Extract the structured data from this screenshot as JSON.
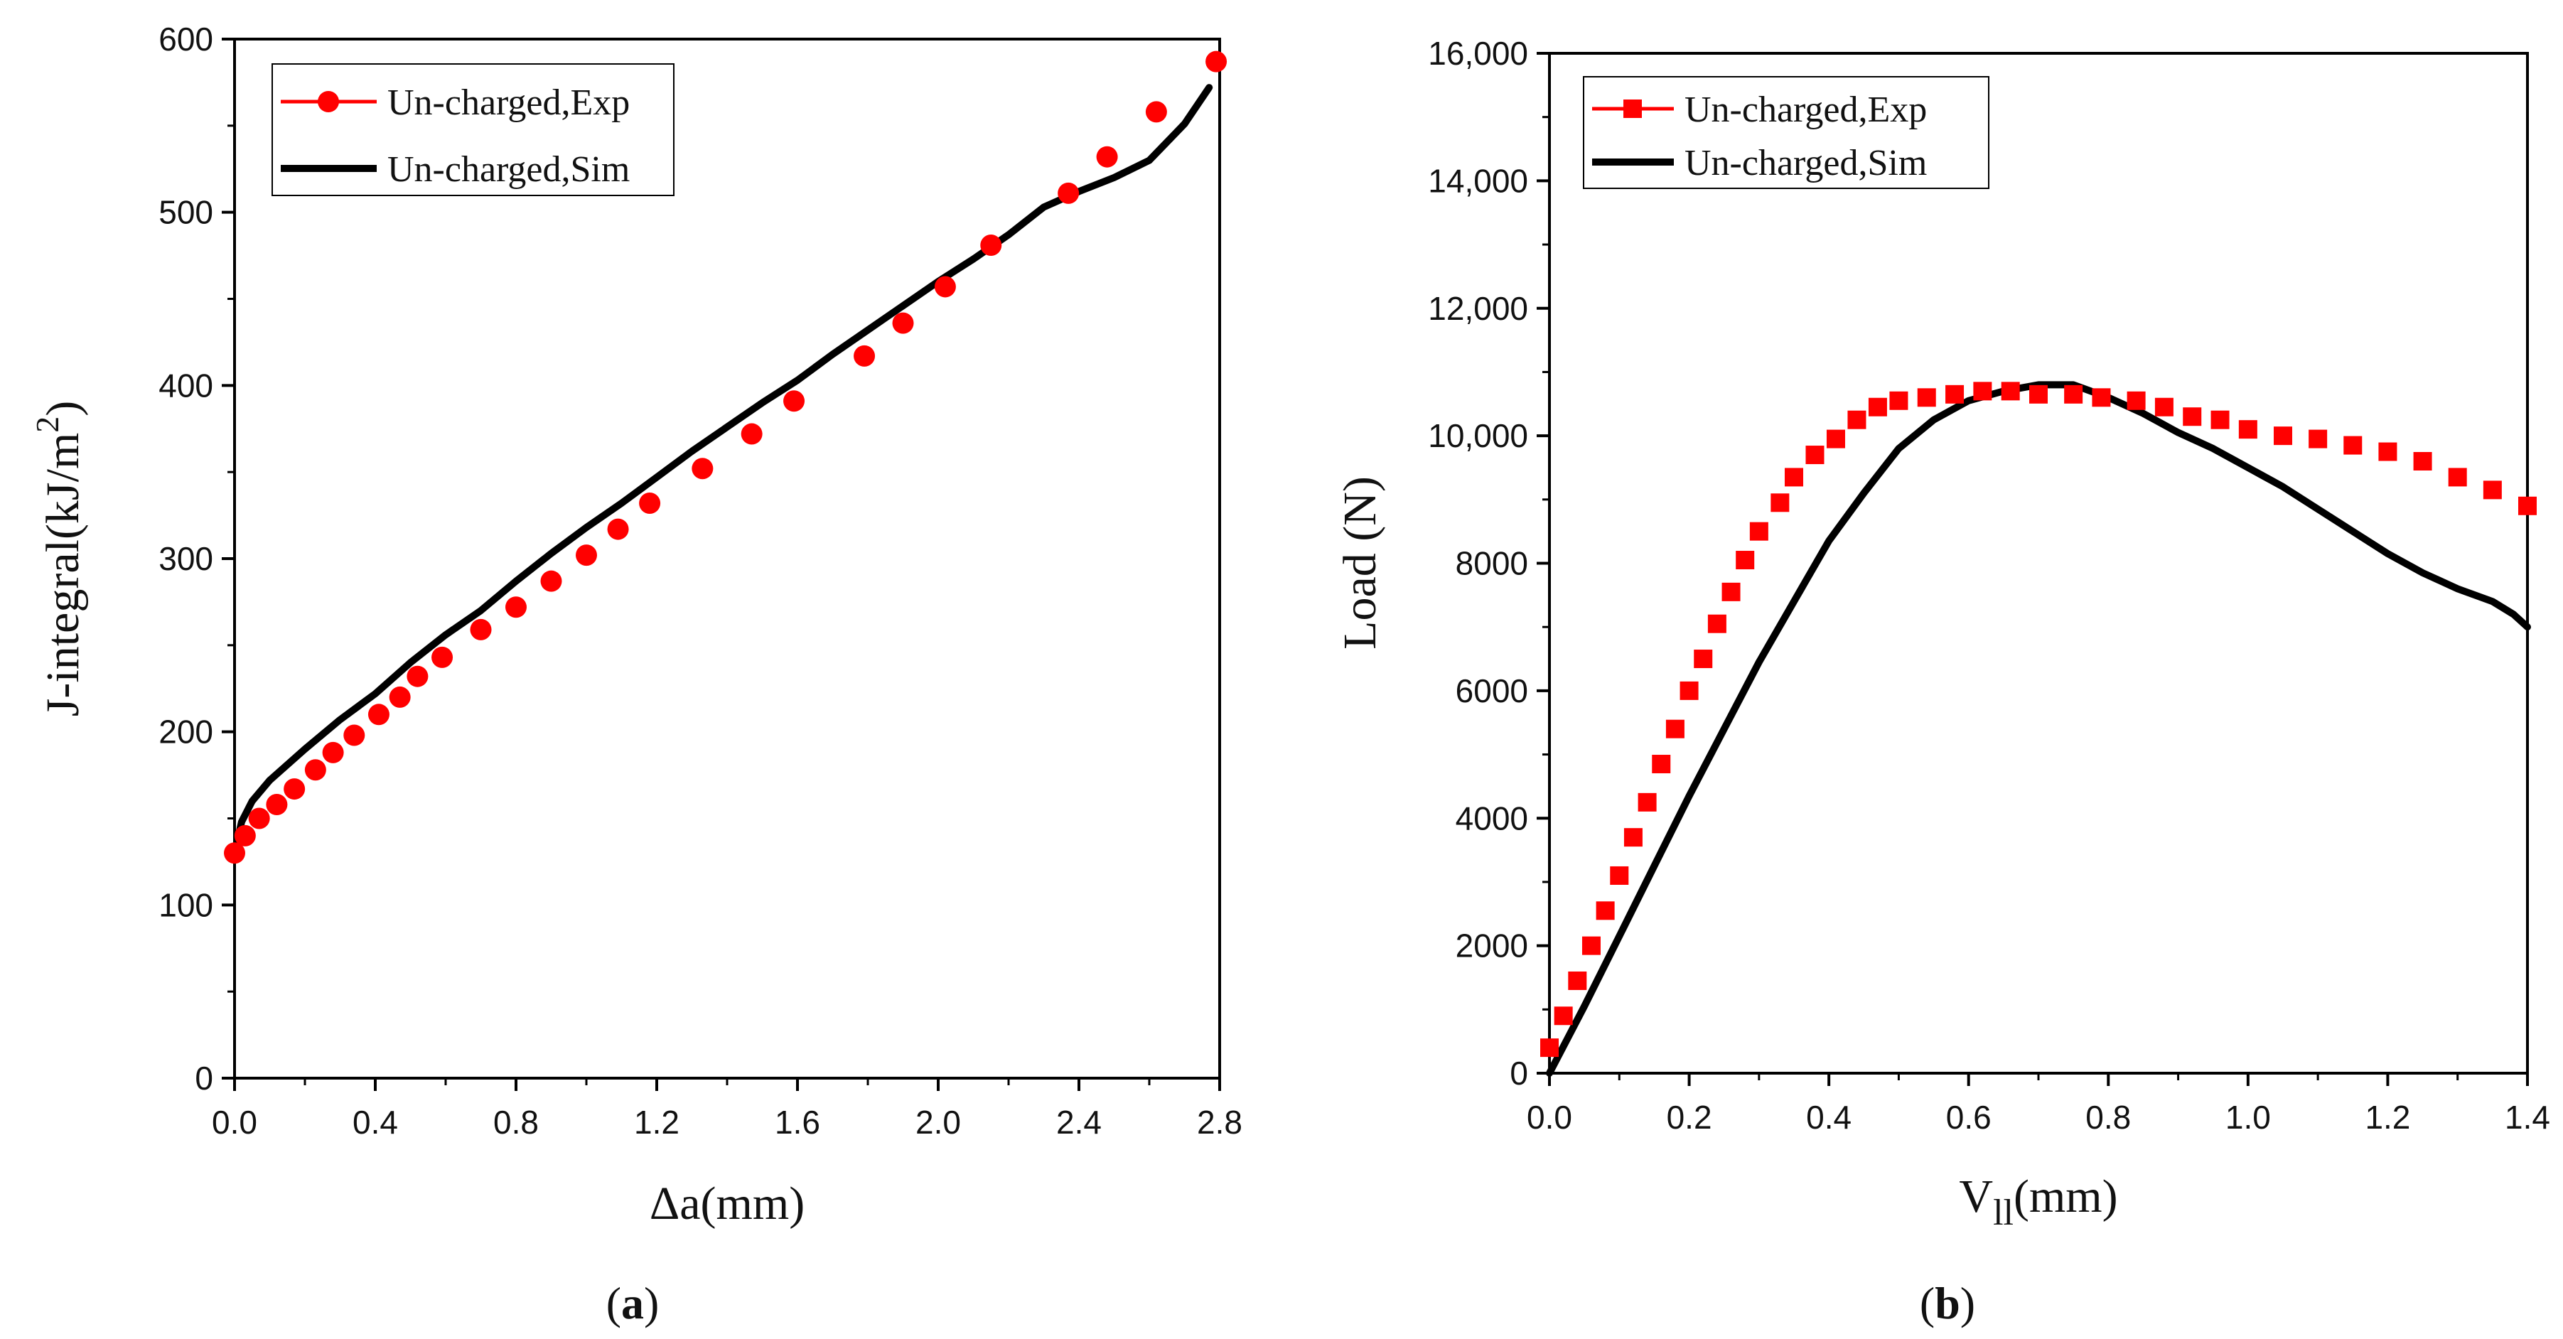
{
  "chart_data": [
    {
      "type": "scatter",
      "panel_label": "a",
      "xlabel": "Δa(mm)",
      "ylabel": "J-integral(kJ/m",
      "ylabel_sup": "2",
      "ylabel_suffix": ")",
      "xlim": [
        0,
        2.8
      ],
      "ylim": [
        0,
        600
      ],
      "xticks": [
        "0.0",
        "0.4",
        "0.8",
        "1.2",
        "1.6",
        "2.0",
        "2.4",
        "2.8"
      ],
      "yticks": [
        "0",
        "100",
        "200",
        "300",
        "400",
        "500",
        "600"
      ],
      "legend_position": "top-left",
      "series": [
        {
          "name": "Un-charged,Exp",
          "kind": "markers",
          "marker": "circle",
          "color": "#ff0000",
          "x": [
            0.0,
            0.03,
            0.07,
            0.12,
            0.17,
            0.23,
            0.28,
            0.34,
            0.41,
            0.47,
            0.52,
            0.59,
            0.7,
            0.8,
            0.9,
            1.0,
            1.09,
            1.18,
            1.33,
            1.47,
            1.59,
            1.79,
            1.9,
            2.02,
            2.15,
            2.37,
            2.48,
            2.62,
            2.79
          ],
          "y": [
            130,
            140,
            150,
            158,
            167,
            178,
            188,
            198,
            210,
            220,
            232,
            243,
            259,
            272,
            287,
            302,
            317,
            332,
            352,
            372,
            391,
            417,
            436,
            457,
            481,
            511,
            532,
            558,
            587
          ]
        },
        {
          "name": "Un-charged,Sim",
          "kind": "line",
          "color": "#000000",
          "x": [
            0.0,
            0.02,
            0.05,
            0.1,
            0.2,
            0.3,
            0.4,
            0.5,
            0.6,
            0.7,
            0.8,
            0.9,
            1.0,
            1.1,
            1.2,
            1.3,
            1.4,
            1.5,
            1.6,
            1.7,
            1.8,
            1.9,
            2.0,
            2.1,
            2.2,
            2.3,
            2.4,
            2.5,
            2.6,
            2.7,
            2.77
          ],
          "y": [
            130,
            148,
            160,
            172,
            190,
            207,
            222,
            240,
            256,
            270,
            287,
            303,
            318,
            332,
            347,
            362,
            376,
            390,
            403,
            418,
            432,
            446,
            460,
            473,
            487,
            503,
            512,
            520,
            530,
            551,
            572
          ]
        }
      ]
    },
    {
      "type": "scatter",
      "panel_label": "b",
      "xlabel": "V",
      "xlabel_sub": "ll",
      "xlabel_suffix": "(mm)",
      "ylabel": "Load (N)",
      "xlim": [
        0,
        1.4
      ],
      "ylim": [
        0,
        16000
      ],
      "xticks": [
        "0.0",
        "0.2",
        "0.4",
        "0.6",
        "0.8",
        "1.0",
        "1.2",
        "1.4"
      ],
      "yticks": [
        "0",
        "2000",
        "4000",
        "6000",
        "8000",
        "10,000",
        "12,000",
        "14,000",
        "16,000"
      ],
      "legend_position": "top-left",
      "series": [
        {
          "name": "Un-charged,Exp",
          "kind": "markers",
          "marker": "square",
          "color": "#ff0000",
          "x": [
            0.0,
            0.02,
            0.04,
            0.06,
            0.08,
            0.1,
            0.12,
            0.14,
            0.16,
            0.18,
            0.2,
            0.22,
            0.24,
            0.26,
            0.28,
            0.3,
            0.33,
            0.35,
            0.38,
            0.41,
            0.44,
            0.47,
            0.5,
            0.54,
            0.58,
            0.62,
            0.66,
            0.7,
            0.75,
            0.79,
            0.84,
            0.88,
            0.92,
            0.96,
            1.0,
            1.05,
            1.1,
            1.15,
            1.2,
            1.25,
            1.3,
            1.35,
            1.4
          ],
          "y": [
            400,
            900,
            1450,
            2000,
            2550,
            3100,
            3700,
            4250,
            4850,
            5400,
            6000,
            6500,
            7050,
            7550,
            8050,
            8500,
            8950,
            9350,
            9700,
            9950,
            10250,
            10450,
            10550,
            10600,
            10650,
            10700,
            10700,
            10650,
            10650,
            10600,
            10550,
            10450,
            10300,
            10250,
            10100,
            10000,
            9950,
            9850,
            9750,
            9600,
            9350,
            9150,
            8900
          ]
        },
        {
          "name": "Un-charged,Sim",
          "kind": "line",
          "color": "#000000",
          "x": [
            0.0,
            0.05,
            0.1,
            0.15,
            0.2,
            0.25,
            0.3,
            0.35,
            0.4,
            0.45,
            0.5,
            0.55,
            0.6,
            0.65,
            0.7,
            0.75,
            0.8,
            0.85,
            0.9,
            0.95,
            1.0,
            1.05,
            1.1,
            1.15,
            1.2,
            1.25,
            1.3,
            1.35,
            1.38,
            1.4
          ],
          "y": [
            0,
            1050,
            2150,
            3250,
            4350,
            5400,
            6450,
            7400,
            8350,
            9100,
            9800,
            10250,
            10550,
            10700,
            10800,
            10800,
            10600,
            10350,
            10050,
            9800,
            9500,
            9200,
            8850,
            8500,
            8150,
            7850,
            7600,
            7400,
            7200,
            7000
          ]
        }
      ]
    }
  ]
}
